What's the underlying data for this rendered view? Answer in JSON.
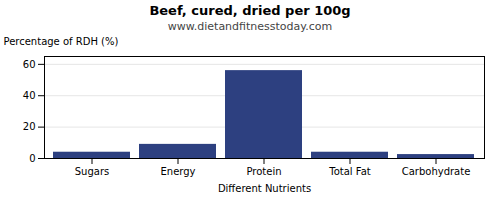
{
  "chart_data": {
    "type": "bar",
    "title": "Beef, cured, dried per 100g",
    "subtitle": "www.dietandfitnesstoday.com",
    "xlabel": "Different Nutrients",
    "ylabel": "Percentage of RDH (%)",
    "categories": [
      "Sugars",
      "Energy",
      "Protein",
      "Total Fat",
      "Carbohydrate"
    ],
    "values": [
      4,
      9,
      56,
      4,
      2.5
    ],
    "color": "#2d4080",
    "ylim": [
      0,
      65
    ],
    "yticks": [
      0,
      20,
      40,
      60
    ],
    "grid": true
  }
}
